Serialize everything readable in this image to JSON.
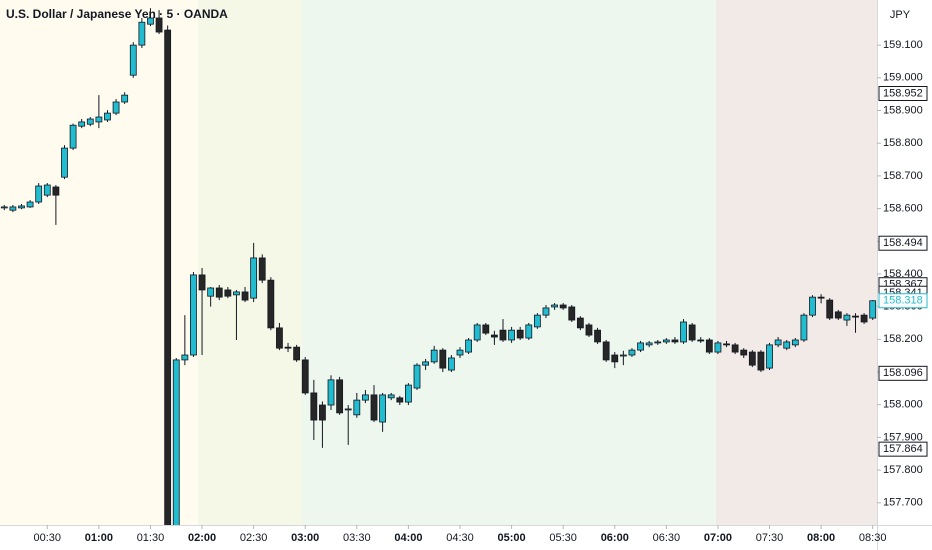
{
  "chart_data": {
    "type": "candlestick",
    "title": "U.S. Dollar / Japanese Yen · 5 · OANDA",
    "currency": "JPY",
    "up_color": "#22bcd0",
    "down_color": "#262626",
    "x": [
      "00:05",
      "00:10",
      "00:15",
      "00:20",
      "00:25",
      "00:30",
      "00:35",
      "00:40",
      "00:45",
      "00:50",
      "00:55",
      "01:00",
      "01:05",
      "01:10",
      "01:15",
      "01:20",
      "01:25",
      "01:30",
      "01:35",
      "01:40",
      "01:45",
      "01:50",
      "01:55",
      "02:00",
      "02:05",
      "02:10",
      "02:15",
      "02:20",
      "02:25",
      "02:30",
      "02:35",
      "02:40",
      "02:45",
      "02:50",
      "02:55",
      "03:00",
      "03:05",
      "03:10",
      "03:15",
      "03:20",
      "03:25",
      "03:30",
      "03:35",
      "03:40",
      "03:45",
      "03:50",
      "03:55",
      "04:00",
      "04:05",
      "04:10",
      "04:15",
      "04:20",
      "04:25",
      "04:30",
      "04:35",
      "04:40",
      "04:45",
      "04:50",
      "04:55",
      "05:00",
      "05:05",
      "05:10",
      "05:15",
      "05:20",
      "05:25",
      "05:30",
      "05:35",
      "05:40",
      "05:45",
      "05:50",
      "05:55",
      "06:00",
      "06:05",
      "06:10",
      "06:15",
      "06:20",
      "06:25",
      "06:30",
      "06:35",
      "06:40",
      "06:45",
      "06:50",
      "06:55",
      "07:00",
      "07:05",
      "07:10",
      "07:15",
      "07:20",
      "07:25",
      "07:30",
      "07:35",
      "07:40",
      "07:45",
      "07:50",
      "07:55",
      "08:00",
      "08:05",
      "08:10",
      "08:15",
      "08:20",
      "08:25",
      "08:30"
    ],
    "ohlc": [
      [
        158.602,
        158.611,
        158.595,
        158.605
      ],
      [
        158.595,
        158.611,
        158.589,
        158.605
      ],
      [
        158.602,
        158.614,
        158.598,
        158.608
      ],
      [
        158.605,
        158.626,
        158.602,
        158.62
      ],
      [
        158.62,
        158.678,
        158.614,
        158.669
      ],
      [
        158.641,
        158.678,
        158.635,
        158.672
      ],
      [
        158.666,
        158.672,
        158.55,
        158.641
      ],
      [
        158.696,
        158.794,
        158.69,
        158.785
      ],
      [
        158.785,
        158.86,
        158.779,
        158.855
      ],
      [
        158.852,
        158.874,
        158.846,
        158.865
      ],
      [
        158.858,
        158.88,
        158.852,
        158.874
      ],
      [
        158.865,
        158.947,
        158.846,
        158.88
      ],
      [
        158.871,
        158.901,
        158.865,
        158.892
      ],
      [
        158.892,
        158.935,
        158.886,
        158.926
      ],
      [
        158.926,
        158.956,
        158.92,
        158.947
      ],
      [
        159.008,
        159.109,
        159.0,
        159.1
      ],
      [
        159.1,
        159.183,
        159.091,
        159.17
      ],
      [
        159.164,
        159.213,
        159.158,
        159.183
      ],
      [
        159.183,
        159.207,
        159.134,
        159.14
      ],
      [
        159.146,
        159.16,
        157.6,
        157.62
      ],
      [
        157.62,
        158.143,
        157.6,
        158.137
      ],
      [
        158.137,
        158.274,
        158.121,
        158.152
      ],
      [
        158.152,
        158.406,
        158.146,
        158.397
      ],
      [
        158.397,
        158.418,
        158.152,
        158.351
      ],
      [
        158.332,
        158.36,
        158.3,
        158.357
      ],
      [
        158.357,
        158.366,
        158.32,
        158.329
      ],
      [
        158.351,
        158.36,
        158.326,
        158.332
      ],
      [
        158.336,
        158.351,
        158.198,
        158.345
      ],
      [
        158.345,
        158.36,
        158.314,
        158.32
      ],
      [
        158.326,
        158.495,
        158.314,
        158.449
      ],
      [
        158.449,
        158.46,
        158.372,
        158.381
      ],
      [
        158.381,
        158.39,
        158.228,
        158.235
      ],
      [
        158.235,
        158.25,
        158.167,
        158.173
      ],
      [
        158.176,
        158.189,
        158.161,
        158.173
      ],
      [
        158.176,
        158.183,
        158.131,
        158.137
      ],
      [
        158.137,
        158.146,
        158.03,
        158.036
      ],
      [
        158.036,
        158.076,
        157.892,
        157.953
      ],
      [
        157.999,
        158.01,
        157.868,
        157.953
      ],
      [
        157.999,
        158.09,
        157.984,
        158.076
      ],
      [
        158.076,
        158.085,
        157.969,
        157.975
      ],
      [
        157.984,
        157.999,
        157.877,
        157.987
      ],
      [
        157.969,
        158.036,
        157.96,
        158.014
      ],
      [
        158.014,
        158.045,
        158.005,
        158.03
      ],
      [
        158.03,
        158.06,
        157.947,
        157.953
      ],
      [
        157.947,
        158.036,
        157.917,
        158.03
      ],
      [
        158.021,
        158.036,
        158.014,
        158.03
      ],
      [
        158.021,
        158.027,
        157.999,
        158.008
      ],
      [
        158.008,
        158.066,
        157.999,
        158.06
      ],
      [
        158.051,
        158.127,
        158.045,
        158.121
      ],
      [
        158.121,
        158.14,
        158.106,
        158.131
      ],
      [
        158.131,
        158.18,
        158.125,
        158.167
      ],
      [
        158.167,
        158.173,
        158.1,
        158.112
      ],
      [
        158.106,
        158.152,
        158.1,
        158.143
      ],
      [
        158.152,
        158.176,
        158.143,
        158.167
      ],
      [
        158.161,
        158.204,
        158.155,
        158.198
      ],
      [
        158.198,
        158.25,
        158.192,
        158.244
      ],
      [
        158.244,
        158.25,
        158.213,
        158.219
      ],
      [
        158.213,
        158.226,
        158.183,
        158.207
      ],
      [
        158.228,
        158.262,
        158.192,
        158.198
      ],
      [
        158.198,
        158.238,
        158.189,
        158.228
      ],
      [
        158.228,
        158.238,
        158.198,
        158.204
      ],
      [
        158.204,
        158.25,
        158.198,
        158.244
      ],
      [
        158.238,
        158.28,
        158.232,
        158.274
      ],
      [
        158.274,
        158.305,
        158.265,
        158.296
      ],
      [
        158.299,
        158.311,
        158.29,
        158.305
      ],
      [
        158.305,
        158.311,
        158.29,
        158.296
      ],
      [
        158.299,
        158.305,
        158.253,
        158.259
      ],
      [
        158.265,
        158.271,
        158.228,
        158.235
      ],
      [
        158.244,
        158.25,
        158.207,
        158.213
      ],
      [
        158.228,
        158.235,
        158.186,
        158.192
      ],
      [
        158.192,
        158.198,
        158.131,
        158.137
      ],
      [
        158.152,
        158.161,
        158.112,
        158.131
      ],
      [
        158.149,
        158.165,
        158.121,
        158.152
      ],
      [
        158.152,
        158.173,
        158.146,
        158.167
      ],
      [
        158.167,
        158.195,
        158.161,
        158.189
      ],
      [
        158.183,
        158.195,
        158.176,
        158.189
      ],
      [
        158.189,
        158.198,
        158.183,
        158.192
      ],
      [
        158.192,
        158.204,
        158.186,
        158.198
      ],
      [
        158.198,
        158.207,
        158.186,
        158.192
      ],
      [
        158.192,
        158.262,
        158.186,
        158.253
      ],
      [
        158.244,
        158.25,
        158.192,
        158.198
      ],
      [
        158.198,
        158.207,
        158.189,
        158.195
      ],
      [
        158.198,
        158.204,
        158.155,
        158.161
      ],
      [
        158.161,
        158.195,
        158.155,
        158.189
      ],
      [
        158.186,
        158.195,
        158.176,
        158.183
      ],
      [
        158.183,
        158.189,
        158.155,
        158.161
      ],
      [
        158.167,
        158.173,
        158.143,
        158.152
      ],
      [
        158.161,
        158.167,
        158.115,
        158.121
      ],
      [
        158.161,
        158.167,
        158.1,
        158.106
      ],
      [
        158.112,
        158.189,
        158.106,
        158.183
      ],
      [
        158.183,
        158.207,
        158.176,
        158.198
      ],
      [
        158.173,
        158.198,
        158.167,
        158.192
      ],
      [
        158.183,
        158.204,
        158.176,
        158.198
      ],
      [
        158.198,
        158.28,
        158.192,
        158.274
      ],
      [
        158.274,
        158.335,
        158.268,
        158.329
      ],
      [
        158.329,
        158.338,
        158.31,
        158.326
      ],
      [
        158.32,
        158.326,
        158.259,
        158.265
      ],
      [
        158.284,
        158.29,
        158.259,
        158.265
      ],
      [
        158.259,
        158.28,
        158.241,
        158.274
      ],
      [
        158.271,
        158.28,
        158.22,
        158.268
      ],
      [
        158.274,
        158.28,
        158.247,
        158.253
      ],
      [
        158.265,
        158.32,
        158.259,
        158.318
      ]
    ],
    "ylim": [
      157.632,
      159.238
    ],
    "yticks": [
      {
        "value": 159.1,
        "label": "159.100"
      },
      {
        "value": 159.0,
        "label": "159.000"
      },
      {
        "value": 158.9,
        "label": "158.900"
      },
      {
        "value": 158.8,
        "label": "158.800"
      },
      {
        "value": 158.7,
        "label": "158.700"
      },
      {
        "value": 158.6,
        "label": "158.600"
      },
      {
        "value": 158.5,
        "label": "158.500"
      },
      {
        "value": 158.4,
        "label": "158.400"
      },
      {
        "value": 158.3,
        "label": "158.300"
      },
      {
        "value": 158.2,
        "label": "158.200"
      },
      {
        "value": 158.1,
        "label": "158.100"
      },
      {
        "value": 158.0,
        "label": "158.000"
      },
      {
        "value": 157.9,
        "label": "157.900"
      },
      {
        "value": 157.8,
        "label": "157.800"
      },
      {
        "value": 157.7,
        "label": "157.700"
      }
    ],
    "xticks": [
      "00:30",
      "01:00",
      "01:30",
      "02:00",
      "02:30",
      "03:00",
      "03:30",
      "04:00",
      "04:30",
      "05:00",
      "05:30",
      "06:00",
      "06:30",
      "07:00",
      "07:30",
      "08:00",
      "08:30"
    ],
    "price_markers": [
      158.952,
      158.494,
      158.367,
      158.341,
      158.096,
      157.864
    ],
    "last_price": 158.318,
    "last_price_color": "#22bcd0"
  }
}
